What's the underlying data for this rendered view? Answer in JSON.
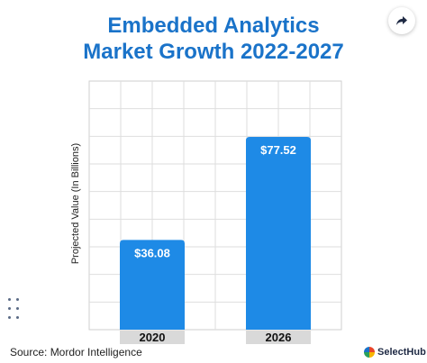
{
  "title_lines": [
    "Embedded Analytics",
    "Market Growth 2022-2027"
  ],
  "source": "Source: Mordor Intelligence",
  "brand": {
    "name": "SelectHub"
  },
  "icons": {
    "share": "share-arrow-icon",
    "brand_mark": "selecthub-logo-icon"
  },
  "colors": {
    "accent": "#1a73c9",
    "bar": "#1e8ae6",
    "tick_bg": "#d9d9d9"
  },
  "chart_data": {
    "type": "bar",
    "categories": [
      "2020",
      "2026"
    ],
    "values": [
      36.08,
      77.52
    ],
    "labels": [
      "$36.08",
      "$77.52"
    ],
    "title": "Embedded Analytics Market Growth 2022-2027",
    "xlabel": "",
    "ylabel": "Projected Value (In Billions)",
    "ylim": [
      0,
      100
    ],
    "grid": true,
    "legend": "none"
  }
}
